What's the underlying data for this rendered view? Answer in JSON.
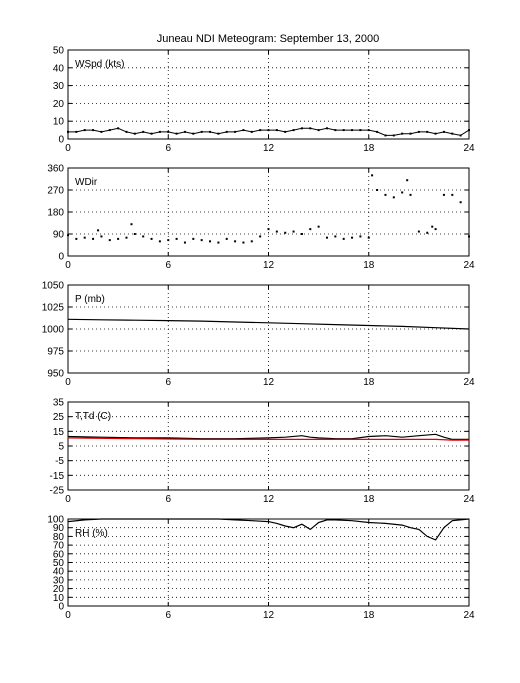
{
  "title": "Juneau NDI Meteogram: September 13, 2000",
  "chart_data": [
    {
      "type": "scatter",
      "label": "WSpd (kts)",
      "xlim": [
        0,
        24
      ],
      "ylim": [
        0,
        50
      ],
      "xticks": [
        "0",
        "6",
        "12",
        "18",
        "24"
      ],
      "yticks": [
        "0",
        "10",
        "20",
        "30",
        "40",
        "50"
      ],
      "grid": true,
      "series": [
        {
          "color": "#000000",
          "x": [
            0,
            0.5,
            1,
            1.5,
            2,
            2.5,
            3,
            3.5,
            4,
            4.5,
            5,
            5.5,
            6,
            6.5,
            7,
            7.5,
            8,
            8.5,
            9,
            9.5,
            10,
            10.5,
            11,
            11.5,
            12,
            12.5,
            13,
            13.5,
            14,
            14.5,
            15,
            15.5,
            16,
            16.5,
            17,
            17.5,
            18,
            18.5,
            19,
            19.5,
            20,
            20.5,
            21,
            21.5,
            22,
            22.5,
            23,
            23.5,
            24
          ],
          "y": [
            4,
            4,
            5,
            5,
            4,
            5,
            6,
            4,
            3,
            4,
            3,
            4,
            4,
            3,
            4,
            3,
            4,
            4,
            3,
            4,
            4,
            5,
            4,
            5,
            5,
            5,
            4,
            5,
            6,
            6,
            5,
            6,
            5,
            5,
            5,
            5,
            5,
            4,
            2,
            2,
            3,
            3,
            4,
            4,
            3,
            4,
            3,
            2,
            5
          ]
        }
      ]
    },
    {
      "type": "scatter",
      "label": "WDir",
      "xlim": [
        0,
        24
      ],
      "ylim": [
        0,
        360
      ],
      "xticks": [
        "0",
        "6",
        "12",
        "18",
        "24"
      ],
      "yticks": [
        "0",
        "90",
        "180",
        "270",
        "360"
      ],
      "grid": true,
      "series": [
        {
          "color": "#000000",
          "x": [
            0,
            0.5,
            1,
            1.5,
            1.8,
            2,
            2.5,
            3,
            3.5,
            3.8,
            4,
            4.5,
            5,
            5.5,
            6,
            6.5,
            7,
            7.5,
            8,
            8.5,
            9,
            9.5,
            10,
            10.5,
            11,
            11.5,
            12,
            12.5,
            13,
            13.5,
            14,
            14.5,
            15,
            15.5,
            16,
            16.5,
            17,
            17.5,
            18,
            18.2,
            18.5,
            19,
            19.5,
            20,
            20.3,
            20.5,
            21,
            21.5,
            21.8,
            22,
            22.5,
            23,
            23.5,
            24
          ],
          "y": [
            85,
            70,
            75,
            70,
            105,
            80,
            65,
            70,
            75,
            130,
            90,
            80,
            70,
            60,
            65,
            70,
            55,
            70,
            65,
            60,
            55,
            70,
            60,
            55,
            60,
            80,
            110,
            100,
            95,
            100,
            90,
            110,
            120,
            75,
            80,
            70,
            75,
            80,
            75,
            330,
            270,
            250,
            240,
            260,
            310,
            250,
            100,
            95,
            120,
            110,
            250,
            250,
            220,
            80
          ]
        }
      ]
    },
    {
      "type": "line",
      "label": "P (mb)",
      "xlim": [
        0,
        24
      ],
      "ylim": [
        950,
        1050
      ],
      "xticks": [
        "0",
        "6",
        "12",
        "18",
        "24"
      ],
      "yticks": [
        "950",
        "975",
        "1000",
        "1025",
        "1050"
      ],
      "grid": true,
      "series": [
        {
          "color": "#000000",
          "x": [
            0,
            2,
            4,
            6,
            8,
            10,
            12,
            14,
            16,
            18,
            20,
            22,
            24
          ],
          "y": [
            1011,
            1010.5,
            1010,
            1009.5,
            1009,
            1008,
            1007,
            1006,
            1005,
            1004,
            1003,
            1001.5,
            1000
          ]
        }
      ]
    },
    {
      "type": "line",
      "label": "T,Td (C)",
      "xlim": [
        0,
        24
      ],
      "ylim": [
        -25,
        35
      ],
      "xticks": [
        "0",
        "6",
        "12",
        "18",
        "24"
      ],
      "yticks": [
        "-25",
        "-15",
        "-5",
        "5",
        "15",
        "25",
        "35"
      ],
      "grid": true,
      "series": [
        {
          "color": "#000000",
          "x": [
            0,
            2,
            4,
            6,
            8,
            10,
            12,
            13,
            14,
            14.5,
            15,
            16,
            17,
            18,
            19,
            20,
            21,
            22,
            22.5,
            23,
            24
          ],
          "y": [
            11.5,
            11,
            10.5,
            10.5,
            10,
            10,
            10.5,
            11,
            12,
            11,
            10.5,
            10,
            10,
            11.5,
            12,
            11,
            12,
            13,
            11,
            9.5,
            9.5
          ]
        },
        {
          "color": "#e00000",
          "x": [
            0,
            4,
            8,
            12,
            16,
            20,
            22,
            23,
            24
          ],
          "y": [
            10.5,
            10,
            9.5,
            9.5,
            9.5,
            9.5,
            9.5,
            9,
            9
          ]
        }
      ]
    },
    {
      "type": "line",
      "label": "RH (%)",
      "xlim": [
        0,
        24
      ],
      "ylim": [
        0,
        100
      ],
      "xticks": [
        "0",
        "6",
        "12",
        "18",
        "24"
      ],
      "yticks": [
        "0",
        "10",
        "20",
        "30",
        "40",
        "50",
        "60",
        "70",
        "80",
        "90",
        "100"
      ],
      "grid": true,
      "series": [
        {
          "color": "#000000",
          "x": [
            0,
            1,
            2,
            3,
            4,
            5,
            6,
            7,
            8,
            9,
            10,
            11,
            12,
            12.5,
            13,
            13.5,
            14,
            14.5,
            15,
            15.5,
            16,
            17,
            18,
            19,
            20,
            20.5,
            21,
            21.5,
            22,
            22.5,
            23,
            24
          ],
          "y": [
            97,
            99,
            100,
            100,
            100,
            100,
            100,
            100,
            100,
            100,
            99,
            98,
            97,
            95,
            92,
            90,
            94,
            88,
            96,
            99,
            99,
            98,
            96,
            95,
            93,
            90,
            88,
            80,
            76,
            90,
            98,
            100
          ]
        }
      ]
    }
  ]
}
